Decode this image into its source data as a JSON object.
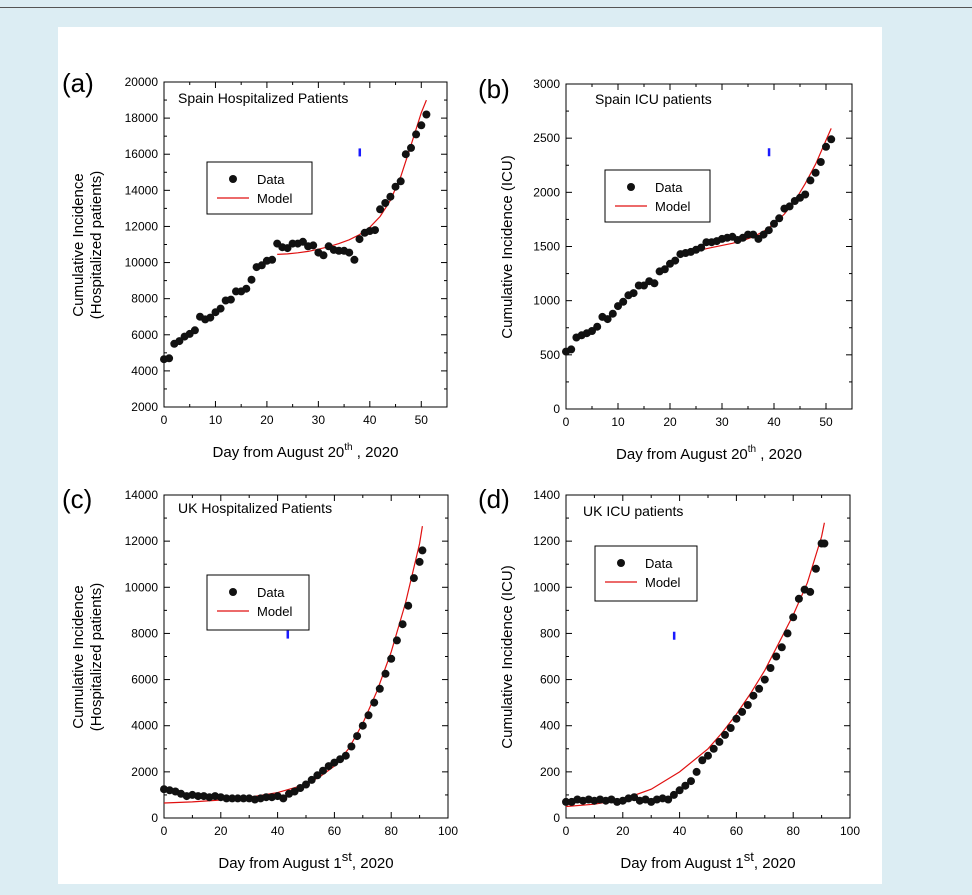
{
  "colors": {
    "data": "#111111",
    "model": "#e01010",
    "marker": "#1a1aff",
    "panel_bg": "#ffffff",
    "page_bg": "#dcedf3"
  },
  "chart_data": [
    {
      "id": "a",
      "type": "scatter",
      "panel_label": "(a)",
      "title": "Spain Hospitalized Patients",
      "xlabel": "Day from August 20",
      "xlabel_sup": "th",
      "xlabel_suffix": " , 2020",
      "ylabel": [
        "Cumulative Incidence",
        "(Hospitalized patients)"
      ],
      "xlim": [
        0,
        55
      ],
      "ylim": [
        2000,
        20000
      ],
      "xticks": [
        0,
        10,
        20,
        30,
        40,
        50
      ],
      "yticks": [
        2000,
        4000,
        6000,
        8000,
        10000,
        12000,
        14000,
        16000,
        18000,
        20000
      ],
      "legend": {
        "data": "Data",
        "model": "Model"
      },
      "marker_point": {
        "x": 38,
        "y": 16100
      },
      "series": [
        {
          "name": "Data",
          "kind": "points",
          "x": [
            0,
            1,
            2,
            3,
            4,
            5,
            6,
            7,
            8,
            9,
            10,
            11,
            12,
            13,
            14,
            15,
            16,
            17,
            18,
            19,
            20,
            21,
            22,
            23,
            24,
            25,
            26,
            27,
            28,
            29,
            30,
            31,
            32,
            33,
            34,
            35,
            36,
            37,
            38,
            39,
            40,
            41,
            42,
            43,
            44,
            45,
            46,
            47,
            48,
            49,
            50,
            51
          ],
          "y": [
            4650,
            4700,
            5500,
            5650,
            5900,
            6050,
            6250,
            7000,
            6850,
            6950,
            7250,
            7450,
            7900,
            7950,
            8400,
            8400,
            8550,
            9050,
            9750,
            9850,
            10100,
            10150,
            11050,
            10850,
            10800,
            11050,
            11050,
            11150,
            10900,
            10950,
            10550,
            10400,
            10900,
            10700,
            10650,
            10650,
            10550,
            10150,
            11300,
            11650,
            11750,
            11800,
            12950,
            13300,
            13650,
            14200,
            14500,
            16000,
            16350,
            17100,
            17600,
            18200
          ]
        },
        {
          "name": "Model",
          "kind": "line",
          "x": [
            22,
            24,
            26,
            28,
            30,
            32,
            34,
            36,
            38,
            40,
            42,
            44,
            46,
            48,
            50,
            51
          ],
          "y": [
            10450,
            10480,
            10540,
            10620,
            10740,
            10880,
            11050,
            11260,
            11550,
            11950,
            12550,
            13450,
            14750,
            16500,
            18300,
            19000
          ]
        }
      ]
    },
    {
      "id": "b",
      "type": "scatter",
      "panel_label": "(b)",
      "title": "Spain ICU patients",
      "xlabel": "Day from August 20",
      "xlabel_sup": "th",
      "xlabel_suffix": " , 2020",
      "ylabel": [
        "Cumulative  Incidence (ICU)"
      ],
      "xlim": [
        0,
        55
      ],
      "ylim": [
        0,
        3000
      ],
      "xticks": [
        0,
        10,
        20,
        30,
        40,
        50
      ],
      "yticks": [
        0,
        500,
        1000,
        1500,
        2000,
        2500,
        3000
      ],
      "legend": {
        "data": "Data",
        "model": "Model"
      },
      "marker_point": {
        "x": 39,
        "y": 2370
      },
      "series": [
        {
          "name": "Data",
          "kind": "points",
          "x": [
            0,
            1,
            2,
            3,
            4,
            5,
            6,
            7,
            8,
            9,
            10,
            11,
            12,
            13,
            14,
            15,
            16,
            17,
            18,
            19,
            20,
            21,
            22,
            23,
            24,
            25,
            26,
            27,
            28,
            29,
            30,
            31,
            32,
            33,
            34,
            35,
            36,
            37,
            38,
            39,
            40,
            41,
            42,
            43,
            44,
            45,
            46,
            47,
            48,
            49,
            50,
            51
          ],
          "y": [
            530,
            550,
            660,
            680,
            700,
            720,
            760,
            850,
            830,
            880,
            950,
            990,
            1050,
            1070,
            1140,
            1140,
            1180,
            1160,
            1270,
            1290,
            1340,
            1370,
            1430,
            1440,
            1450,
            1470,
            1490,
            1540,
            1540,
            1550,
            1570,
            1580,
            1590,
            1560,
            1580,
            1610,
            1610,
            1570,
            1610,
            1650,
            1710,
            1760,
            1850,
            1870,
            1920,
            1950,
            1980,
            2110,
            2180,
            2280,
            2420,
            2490
          ]
        },
        {
          "name": "Model",
          "kind": "line",
          "x": [
            22,
            24,
            26,
            28,
            30,
            32,
            34,
            36,
            38,
            40,
            42,
            44,
            46,
            48,
            50,
            51
          ],
          "y": [
            1430,
            1450,
            1470,
            1490,
            1510,
            1530,
            1555,
            1590,
            1640,
            1710,
            1800,
            1920,
            2080,
            2260,
            2480,
            2590
          ]
        }
      ]
    },
    {
      "id": "c",
      "type": "scatter",
      "panel_label": "(c)",
      "title": "UK Hospitalized Patients",
      "xlabel": "Day from August 1",
      "xlabel_sup": "st",
      "xlabel_suffix": ", 2020",
      "ylabel": [
        "Cumulative Incidence",
        "(Hospitalized patients)"
      ],
      "xlim": [
        0,
        100
      ],
      "ylim": [
        0,
        14000
      ],
      "xticks": [
        0,
        20,
        40,
        60,
        80,
        100
      ],
      "yticks": [
        0,
        2000,
        4000,
        6000,
        8000,
        10000,
        12000,
        14000
      ],
      "legend": {
        "data": "Data",
        "model": "Model"
      },
      "marker_point": {
        "x": 43.5,
        "y": 7950
      },
      "series": [
        {
          "name": "Data",
          "kind": "points",
          "x": [
            0,
            2,
            4,
            6,
            8,
            10,
            12,
            14,
            16,
            18,
            20,
            22,
            24,
            26,
            28,
            30,
            32,
            34,
            36,
            38,
            40,
            42,
            44,
            46,
            48,
            50,
            52,
            54,
            56,
            58,
            60,
            62,
            64,
            66,
            68,
            70,
            72,
            74,
            76,
            78,
            80,
            82,
            84,
            86,
            88,
            90,
            91
          ],
          "y": [
            1250,
            1200,
            1150,
            1050,
            950,
            1000,
            950,
            950,
            900,
            950,
            900,
            850,
            850,
            850,
            850,
            850,
            800,
            850,
            900,
            900,
            950,
            850,
            1050,
            1150,
            1300,
            1450,
            1650,
            1850,
            2050,
            2250,
            2400,
            2550,
            2700,
            3100,
            3550,
            4000,
            4450,
            5000,
            5600,
            6250,
            6900,
            7700,
            8400,
            9200,
            10400,
            11100,
            11600
          ]
        },
        {
          "name": "Model",
          "kind": "line",
          "x": [
            0,
            10,
            20,
            30,
            40,
            50,
            55,
            60,
            65,
            70,
            75,
            80,
            85,
            90,
            91
          ],
          "y": [
            650,
            700,
            780,
            900,
            1100,
            1450,
            1800,
            2250,
            3000,
            4100,
            5500,
            7200,
            9300,
            11900,
            12650
          ]
        }
      ]
    },
    {
      "id": "d",
      "type": "scatter",
      "panel_label": "(d)",
      "title": "UK ICU patients",
      "xlabel": "Day from August 1",
      "xlabel_sup": "st",
      "xlabel_suffix": ", 2020",
      "ylabel": [
        "Cumulative  Incidence (ICU)"
      ],
      "xlim": [
        0,
        100
      ],
      "ylim": [
        0,
        1400
      ],
      "xticks": [
        0,
        20,
        40,
        60,
        80,
        100
      ],
      "yticks": [
        0,
        200,
        400,
        600,
        800,
        1000,
        1200,
        1400
      ],
      "legend": {
        "data": "Data",
        "model": "Model"
      },
      "marker_point": {
        "x": 38,
        "y": 790
      },
      "series": [
        {
          "name": "Data",
          "kind": "points",
          "x": [
            0,
            2,
            4,
            6,
            8,
            10,
            12,
            14,
            16,
            18,
            20,
            22,
            24,
            26,
            28,
            30,
            32,
            34,
            36,
            38,
            40,
            42,
            44,
            46,
            48,
            50,
            52,
            54,
            56,
            58,
            60,
            62,
            64,
            66,
            68,
            70,
            72,
            74,
            76,
            78,
            80,
            82,
            84,
            86,
            88,
            90,
            91
          ],
          "y": [
            70,
            70,
            80,
            75,
            80,
            75,
            80,
            75,
            80,
            70,
            75,
            85,
            90,
            75,
            80,
            70,
            80,
            85,
            80,
            100,
            120,
            140,
            160,
            200,
            250,
            270,
            300,
            330,
            360,
            390,
            430,
            460,
            490,
            530,
            560,
            600,
            650,
            700,
            740,
            800,
            870,
            950,
            990,
            980,
            1080,
            1190,
            1190
          ]
        },
        {
          "name": "Model",
          "kind": "line",
          "x": [
            0,
            10,
            20,
            30,
            40,
            50,
            55,
            60,
            65,
            70,
            75,
            80,
            85,
            90,
            91
          ],
          "y": [
            50,
            60,
            80,
            125,
            200,
            300,
            370,
            450,
            540,
            640,
            760,
            880,
            1020,
            1220,
            1280
          ]
        }
      ]
    }
  ]
}
